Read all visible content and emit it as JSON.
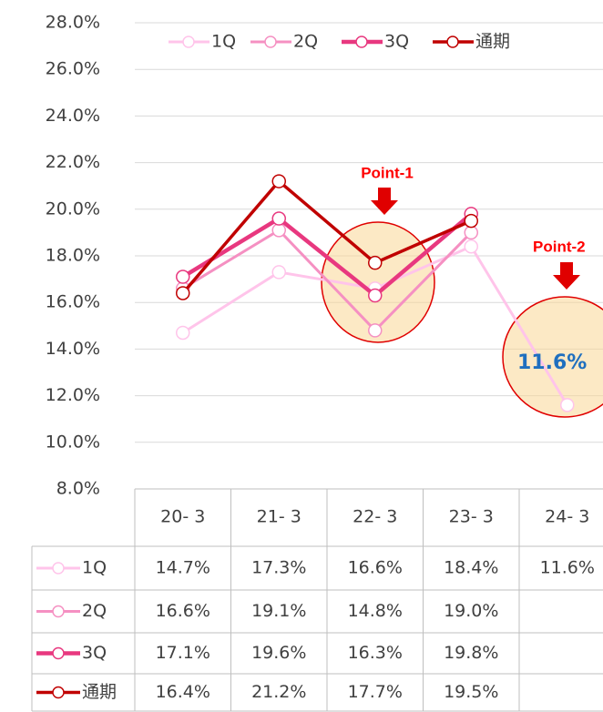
{
  "chart_data": {
    "type": "line",
    "categories": [
      "20- 3",
      "21- 3",
      "22- 3",
      "23- 3",
      "24- 3"
    ],
    "series": [
      {
        "name": "1Q",
        "color": "#ffc4ea",
        "values": [
          14.7,
          17.3,
          16.6,
          18.4,
          11.6
        ],
        "value_labels": [
          "14.7%",
          "17.3%",
          "16.6%",
          "18.4%",
          "11.6%"
        ]
      },
      {
        "name": "2Q",
        "color": "#f590c2",
        "values": [
          16.6,
          19.1,
          14.8,
          19.0,
          null
        ],
        "value_labels": [
          "16.6%",
          "19.1%",
          "14.8%",
          "19.0%",
          null
        ]
      },
      {
        "name": "3Q",
        "color": "#e8387f",
        "values": [
          17.1,
          19.6,
          16.3,
          19.8,
          null
        ],
        "value_labels": [
          "17.1%",
          "19.6%",
          "16.3%",
          "19.8%",
          null
        ]
      },
      {
        "name": "通期",
        "color": "#c00000",
        "values": [
          16.4,
          21.2,
          17.7,
          19.5,
          null
        ],
        "value_labels": [
          "16.4%",
          "21.2%",
          "17.7%",
          "19.5%",
          null
        ]
      }
    ],
    "ylim": [
      8,
      28
    ],
    "yticks": [
      {
        "value": 8,
        "label": "8.0%"
      },
      {
        "value": 10,
        "label": "10.0%"
      },
      {
        "value": 12,
        "label": "12.0%"
      },
      {
        "value": 14,
        "label": "14.0%"
      },
      {
        "value": 16,
        "label": "16.0%"
      },
      {
        "value": 18,
        "label": "18.0%"
      },
      {
        "value": 20,
        "label": "20.0%"
      },
      {
        "value": 22,
        "label": "22.0%"
      },
      {
        "value": 24,
        "label": "24.0%"
      },
      {
        "value": 26,
        "label": "26.0%"
      },
      {
        "value": 28,
        "label": "28.0%"
      }
    ],
    "grid": true,
    "legend": "top",
    "annotations": [
      "Point-1",
      "Point-2"
    ]
  }
}
